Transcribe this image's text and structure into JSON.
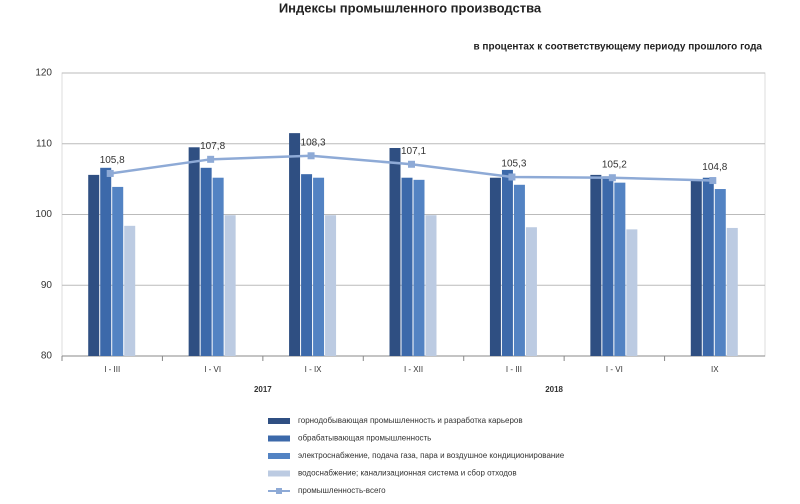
{
  "chart_data": {
    "type": "bar",
    "title": "Индексы промышленного производства",
    "subtitle": "в процентах к соответствующему  периоду прошлого года",
    "categories": [
      "I - III",
      "I - VI",
      "I - IX",
      "I - XII",
      "I - III",
      "I - VI",
      "IX"
    ],
    "x_group_labels": [
      "2017",
      "2018"
    ],
    "ylim": [
      80,
      120
    ],
    "yticks": [
      80,
      90,
      100,
      110,
      120
    ],
    "grid": true,
    "series": [
      {
        "name": "горнодобывающая промышленность и разработка карьеров",
        "color": "#2f4f82",
        "values": [
          105.6,
          109.5,
          111.5,
          109.4,
          105.2,
          105.6,
          104.9
        ]
      },
      {
        "name": "обрабатывающая промышленность",
        "color": "#3c69aa",
        "values": [
          106.6,
          106.6,
          105.7,
          105.2,
          106.3,
          105.4,
          105.2
        ]
      },
      {
        "name": "электроснабжение, подача газа, пара и воздушное кондиционирование",
        "color": "#5383c3",
        "values": [
          103.9,
          105.2,
          105.2,
          104.9,
          104.2,
          104.5,
          103.6
        ]
      },
      {
        "name": "водоснабжение; канализационная система и сбор отходов",
        "color": "#bccbe2",
        "values": [
          98.4,
          99.9,
          99.9,
          99.9,
          98.2,
          97.9,
          98.1
        ]
      },
      {
        "name": "промышленность-всего",
        "type": "line",
        "color": "#8eaad6",
        "values": [
          105.8,
          107.8,
          108.3,
          107.1,
          105.3,
          105.2,
          104.8
        ],
        "value_labels": [
          "105,8",
          "107,8",
          "108,3",
          "107,1",
          "105,3",
          "105,2",
          "104,8"
        ]
      }
    ]
  }
}
